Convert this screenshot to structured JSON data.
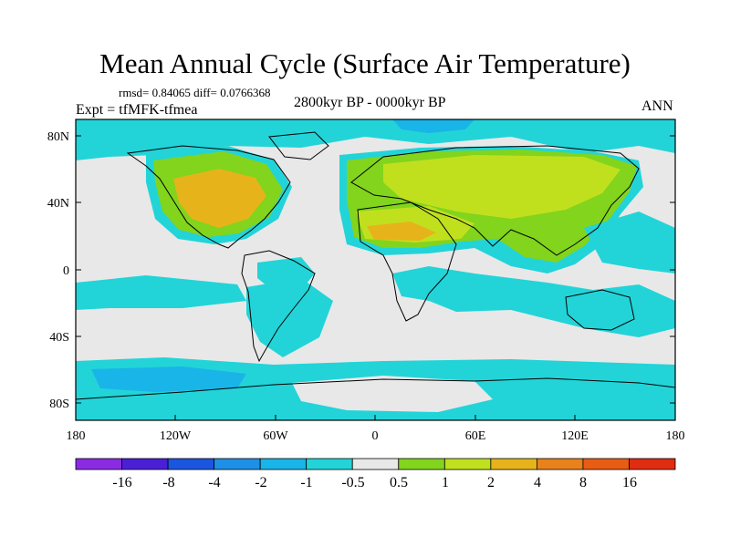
{
  "title": "Mean Annual Cycle (Surface Air Temperature)",
  "stats": "rmsd= 0.84065 diff= 0.0766368",
  "left_label": "Expt = tfMFK-tfmea",
  "center_label": "2800kyr BP - 0000kyr BP",
  "right_label": "ANN",
  "lat_labels": [
    "80N",
    "40N",
    "0",
    "40S",
    "80S"
  ],
  "lon_labels": [
    "180",
    "120W",
    "60W",
    "0",
    "60E",
    "120E",
    "180"
  ],
  "colorbar": {
    "labels": [
      "-16",
      "-8",
      "-4",
      "-2",
      "-1",
      "-0.5",
      "0.5",
      "1",
      "2",
      "4",
      "8",
      "16"
    ],
    "colors": [
      "#8a2be2",
      "#4b1fd6",
      "#1a56e0",
      "#1e90e6",
      "#19b4e8",
      "#22d4d8",
      "#e8e8e8",
      "#82d41c",
      "#c0e01e",
      "#e6b41a",
      "#e8821a",
      "#e85c14",
      "#e02c10"
    ]
  },
  "map_colors": {
    "ocean": "#e8e8e8",
    "cyan": "#22d4d8",
    "blue": "#19b4e8",
    "green": "#82d41c",
    "yellowgreen": "#c0e01e",
    "orange": "#e6b41a"
  }
}
